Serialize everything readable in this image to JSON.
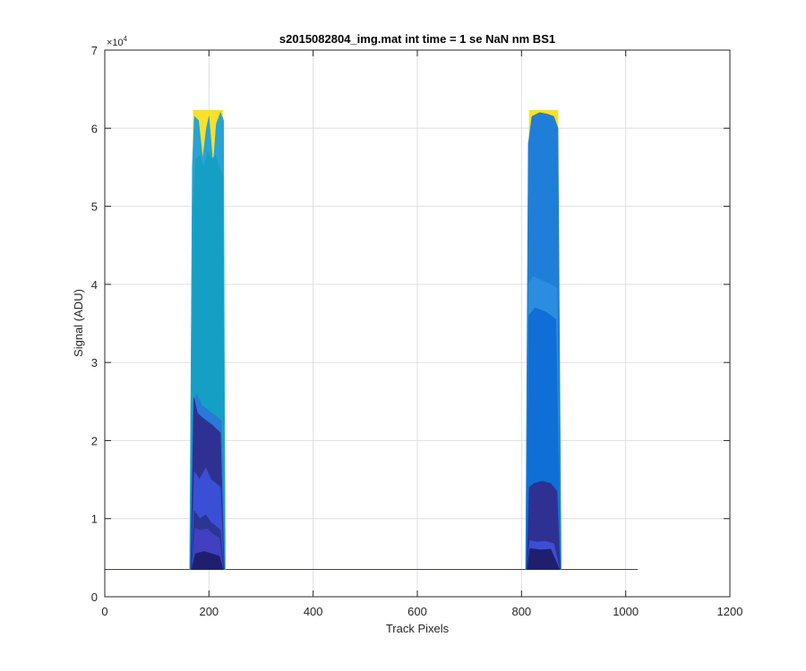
{
  "chart_data": {
    "type": "area",
    "title": "s2015082804_img.mat int time = 1 se  NaN nm BS1",
    "xlabel": "Track Pixels",
    "ylabel": "Signal (ADU)",
    "xlim": [
      0,
      1200
    ],
    "ylim": [
      0,
      70000
    ],
    "x_ticks": [
      0,
      200,
      400,
      600,
      800,
      1000,
      1200
    ],
    "x_tick_labels": [
      "0",
      "200",
      "400",
      "600",
      "800",
      "1000",
      "1200"
    ],
    "y_ticks": [
      0,
      10000,
      20000,
      30000,
      40000,
      50000,
      60000,
      70000
    ],
    "y_tick_labels": [
      "0",
      "1",
      "2",
      "3",
      "4",
      "5",
      "6",
      "7"
    ],
    "y_exponent": {
      "base": "×10",
      "power": "4"
    },
    "grid": true,
    "baseline": {
      "value": 3500,
      "x_start": 0,
      "x_end": 1023,
      "color": "#3a3a8c"
    },
    "bands": [
      {
        "name": "left",
        "layers": [
          {
            "color": "#f9e12a",
            "points": [
              [
                163,
                3500
              ],
              [
                170,
                62300
              ],
              [
                226,
                62300
              ],
              [
                232,
                3500
              ]
            ]
          },
          {
            "color": "#27a3d6",
            "points": [
              [
                163,
                3500
              ],
              [
                168,
                55000
              ],
              [
                172,
                61500
              ],
              [
                180,
                61000
              ],
              [
                188,
                56000
              ],
              [
                195,
                60000
              ],
              [
                200,
                61500
              ],
              [
                208,
                55000
              ],
              [
                214,
                60500
              ],
              [
                222,
                62000
              ],
              [
                228,
                61000
              ],
              [
                231,
                3500
              ]
            ]
          },
          {
            "color": "#169fc4",
            "points": [
              [
                164,
                3500
              ],
              [
                170,
                50000
              ],
              [
                174,
                56000
              ],
              [
                182,
                56500
              ],
              [
                190,
                55000
              ],
              [
                198,
                57000
              ],
              [
                205,
                56000
              ],
              [
                212,
                56500
              ],
              [
                220,
                55000
              ],
              [
                226,
                54000
              ],
              [
                230,
                3500
              ]
            ]
          },
          {
            "color": "#2979d9",
            "points": [
              [
                164,
                3500
              ],
              [
                170,
                25000
              ],
              [
                176,
                26000
              ],
              [
                186,
                24500
              ],
              [
                196,
                24000
              ],
              [
                206,
                23500
              ],
              [
                216,
                23000
              ],
              [
                224,
                22500
              ],
              [
                230,
                3500
              ]
            ]
          },
          {
            "color": "#2e3192",
            "points": [
              [
                165,
                3500
              ],
              [
                171,
                25500
              ],
              [
                178,
                23500
              ],
              [
                186,
                23000
              ],
              [
                196,
                22500
              ],
              [
                206,
                22000
              ],
              [
                214,
                21500
              ],
              [
                222,
                21000
              ],
              [
                229,
                3500
              ]
            ]
          },
          {
            "color": "#3b4fd6",
            "points": [
              [
                166,
                3500
              ],
              [
                172,
                16000
              ],
              [
                182,
                15000
              ],
              [
                194,
                16500
              ],
              [
                204,
                15000
              ],
              [
                214,
                14500
              ],
              [
                222,
                14000
              ],
              [
                228,
                3500
              ]
            ]
          },
          {
            "color": "#2b3592",
            "points": [
              [
                166,
                3500
              ],
              [
                172,
                11000
              ],
              [
                182,
                10000
              ],
              [
                194,
                10500
              ],
              [
                204,
                9500
              ],
              [
                214,
                9000
              ],
              [
                222,
                8500
              ],
              [
                228,
                3500
              ]
            ]
          },
          {
            "color": "#4040c0",
            "points": [
              [
                167,
                3500
              ],
              [
                173,
                8800
              ],
              [
                184,
                8500
              ],
              [
                196,
                8700
              ],
              [
                208,
                8000
              ],
              [
                220,
                7500
              ],
              [
                227,
                3500
              ]
            ]
          },
          {
            "color": "#1f1f6e",
            "points": [
              [
                167,
                3500
              ],
              [
                174,
                5500
              ],
              [
                190,
                5800
              ],
              [
                206,
                5500
              ],
              [
                220,
                5200
              ],
              [
                227,
                3500
              ]
            ]
          }
        ]
      },
      {
        "name": "right",
        "layers": [
          {
            "color": "#f9e12a",
            "points": [
              [
                808,
                3500
              ],
              [
                815,
                62300
              ],
              [
                870,
                62300
              ],
              [
                876,
                3500
              ]
            ]
          },
          {
            "color": "#1f7fd8",
            "points": [
              [
                808,
                3500
              ],
              [
                813,
                58000
              ],
              [
                820,
                61500
              ],
              [
                835,
                62000
              ],
              [
                850,
                61800
              ],
              [
                862,
                61500
              ],
              [
                870,
                60000
              ],
              [
                876,
                3500
              ]
            ]
          },
          {
            "color": "#2b8de0",
            "points": [
              [
                809,
                3500
              ],
              [
                814,
                40000
              ],
              [
                822,
                41000
              ],
              [
                840,
                40500
              ],
              [
                856,
                40000
              ],
              [
                868,
                39500
              ],
              [
                875,
                3500
              ]
            ]
          },
          {
            "color": "#0f6fd6",
            "points": [
              [
                809,
                3500
              ],
              [
                814,
                36000
              ],
              [
                826,
                37000
              ],
              [
                846,
                36500
              ],
              [
                866,
                35500
              ],
              [
                875,
                3500
              ]
            ]
          },
          {
            "color": "#2e3192",
            "points": [
              [
                810,
                3500
              ],
              [
                815,
                14000
              ],
              [
                824,
                14500
              ],
              [
                840,
                14800
              ],
              [
                856,
                14500
              ],
              [
                868,
                13500
              ],
              [
                874,
                3500
              ]
            ]
          },
          {
            "color": "#3b4fd6",
            "points": [
              [
                811,
                3500
              ],
              [
                816,
                7200
              ],
              [
                830,
                7000
              ],
              [
                846,
                7100
              ],
              [
                862,
                6800
              ],
              [
                873,
                3500
              ]
            ]
          },
          {
            "color": "#1f1f6e",
            "points": [
              [
                811,
                3500
              ],
              [
                816,
                6200
              ],
              [
                836,
                6000
              ],
              [
                856,
                6100
              ],
              [
                873,
                3500
              ]
            ]
          }
        ]
      }
    ]
  }
}
